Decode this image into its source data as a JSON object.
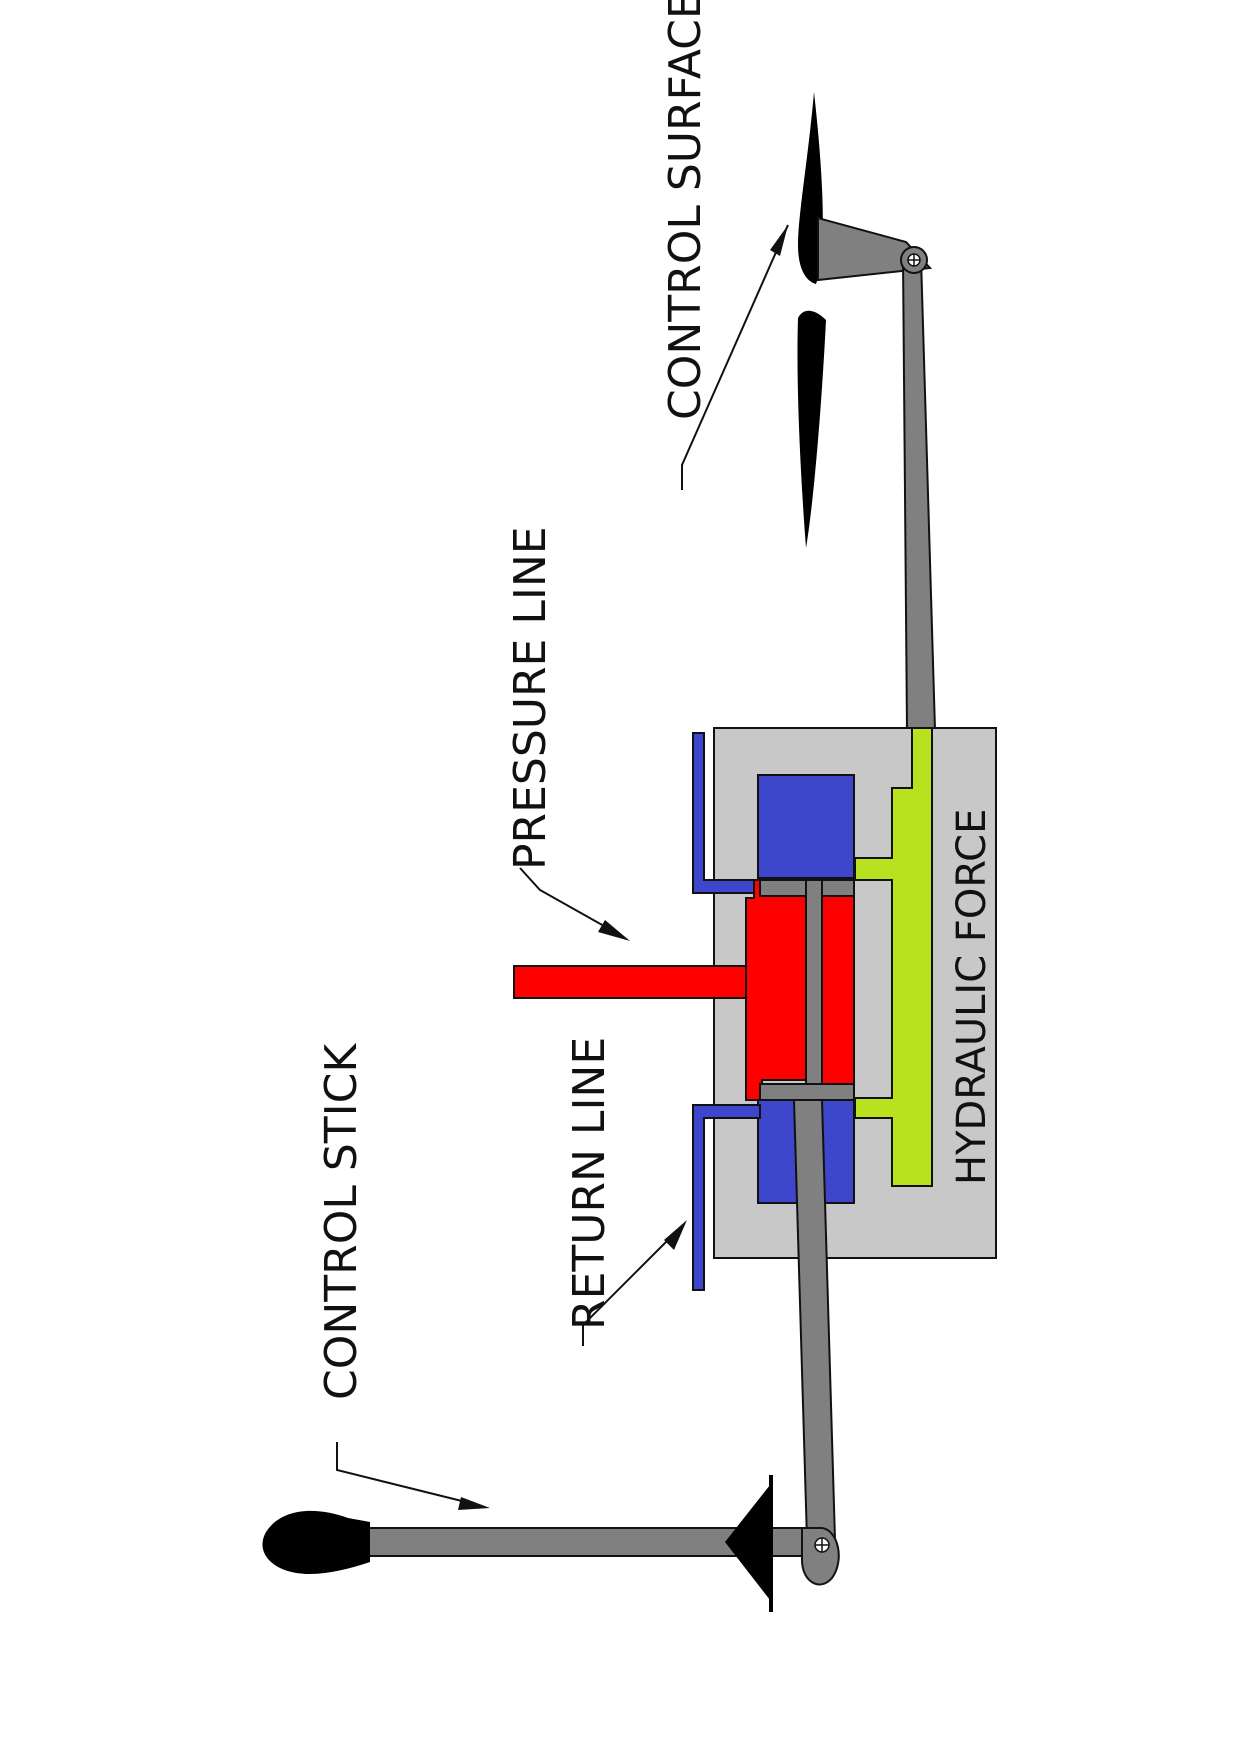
{
  "labels": {
    "control_surface": "CONTROL SURFACE",
    "pressure_line": "PRESSURE LINE",
    "return_line": "RETURN LINE",
    "control_stick": "CONTROL STICK",
    "hydraulic_force": "HYDRAULIC FORCE"
  },
  "colors": {
    "linkage": "#808080",
    "housing": "#c8c8c8",
    "pressure": "#ff0000",
    "return": "#3e46cc",
    "actuator_fluid": "#b8e21f",
    "airfoil": "#000000"
  }
}
